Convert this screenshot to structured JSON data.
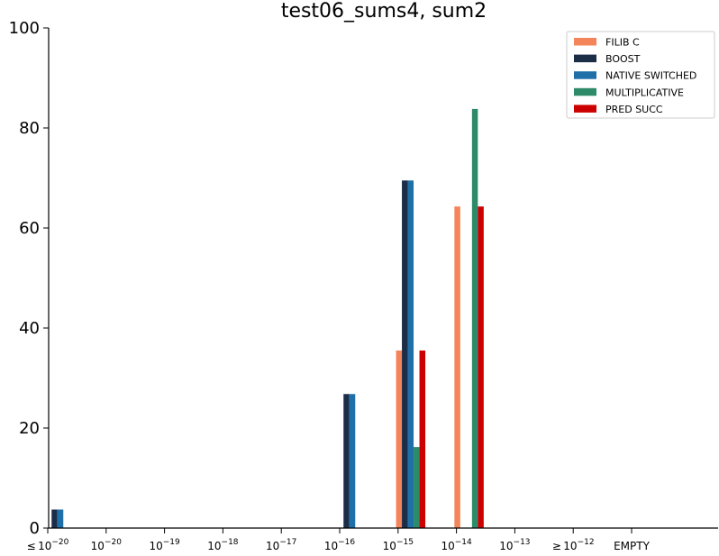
{
  "chart_data": {
    "type": "bar",
    "title": "test06_sums4, sum2",
    "xlabel": "",
    "ylabel": "",
    "ylim": [
      0,
      100
    ],
    "yticks": [
      0,
      20,
      40,
      60,
      80,
      100
    ],
    "grid": false,
    "legend_placement": "top-right",
    "categories": [
      {
        "prefix": "≤",
        "base": "10",
        "exp": "−20"
      },
      {
        "prefix": "",
        "base": "10",
        "exp": "−20"
      },
      {
        "prefix": "",
        "base": "10",
        "exp": "−19"
      },
      {
        "prefix": "",
        "base": "10",
        "exp": "−18"
      },
      {
        "prefix": "",
        "base": "10",
        "exp": "−17"
      },
      {
        "prefix": "",
        "base": "10",
        "exp": "−16"
      },
      {
        "prefix": "",
        "base": "10",
        "exp": "−15"
      },
      {
        "prefix": "",
        "base": "10",
        "exp": "−14"
      },
      {
        "prefix": "",
        "base": "10",
        "exp": "−13"
      },
      {
        "prefix": "≥",
        "base": "10",
        "exp": "−12"
      },
      {
        "prefix": "EMPTY",
        "base": "",
        "exp": ""
      }
    ],
    "series": [
      {
        "name": "FILIB C",
        "color": "#f4845a",
        "values": [
          0,
          0,
          0,
          0,
          0,
          0,
          35.5,
          64.3,
          0,
          0,
          0
        ]
      },
      {
        "name": "BOOST",
        "color": "#1c2d48",
        "values": [
          3.7,
          0,
          0,
          0,
          0,
          26.8,
          69.5,
          0,
          0,
          0,
          0
        ]
      },
      {
        "name": "NATIVE SWITCHED",
        "color": "#1f6fa8",
        "values": [
          3.7,
          0,
          0,
          0,
          0,
          26.8,
          69.5,
          0,
          0,
          0,
          0
        ]
      },
      {
        "name": "MULTIPLICATIVE",
        "color": "#2e8b6a",
        "values": [
          0,
          0,
          0,
          0,
          0,
          0,
          16.2,
          83.8,
          0,
          0,
          0
        ]
      },
      {
        "name": "PRED SUCC",
        "color": "#cc0000",
        "values": [
          0,
          0,
          0,
          0,
          0,
          0,
          35.5,
          64.3,
          0,
          0,
          0
        ]
      }
    ]
  }
}
